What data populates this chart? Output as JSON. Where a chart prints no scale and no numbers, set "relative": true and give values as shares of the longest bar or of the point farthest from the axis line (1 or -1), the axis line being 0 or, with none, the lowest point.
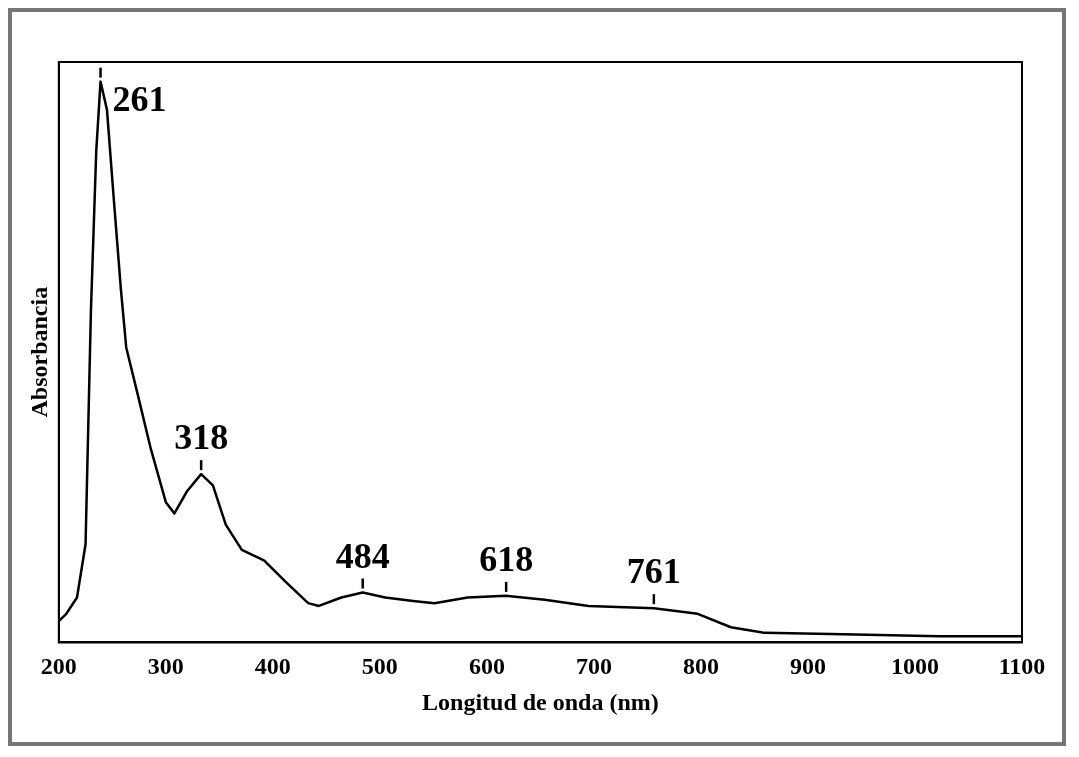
{
  "chart_data": {
    "type": "line",
    "relative": true,
    "xlabel": "Longitud de onda (nm)",
    "ylabel": "Absorbancia",
    "color": "#000000",
    "marker": "none",
    "line_style": "solid",
    "grid": false,
    "legend": false,
    "x": [
      200,
      207,
      217,
      225,
      230,
      235,
      239,
      245,
      251,
      258,
      263,
      274,
      286,
      300,
      308,
      320,
      333,
      344,
      356,
      371,
      392,
      412,
      433,
      443,
      464,
      484,
      505,
      531,
      551,
      582,
      618,
      654,
      695,
      756,
      797,
      828,
      859,
      921,
      1023,
      1100
    ],
    "values": [
      0.038,
      0.051,
      0.08,
      0.175,
      0.59,
      0.877,
      1.0,
      0.95,
      0.8,
      0.63,
      0.526,
      0.44,
      0.345,
      0.25,
      0.23,
      0.27,
      0.3,
      0.28,
      0.21,
      0.165,
      0.146,
      0.108,
      0.07,
      0.065,
      0.08,
      0.089,
      0.08,
      0.074,
      0.07,
      0.08,
      0.083,
      0.076,
      0.065,
      0.061,
      0.051,
      0.027,
      0.017,
      0.015,
      0.011,
      0.011
    ],
    "xlim": [
      200,
      1100
    ],
    "xticks": [
      200,
      300,
      400,
      500,
      600,
      700,
      800,
      900,
      1000,
      1100
    ],
    "annotations": [
      {
        "text": "261",
        "x": 239,
        "y": 1.0
      },
      {
        "text": "318",
        "x": 333,
        "y": 0.3
      },
      {
        "text": "484",
        "x": 484,
        "y": 0.089
      },
      {
        "text": "618",
        "x": 618,
        "y": 0.083
      },
      {
        "text": "761",
        "x": 756,
        "y": 0.061
      }
    ]
  }
}
